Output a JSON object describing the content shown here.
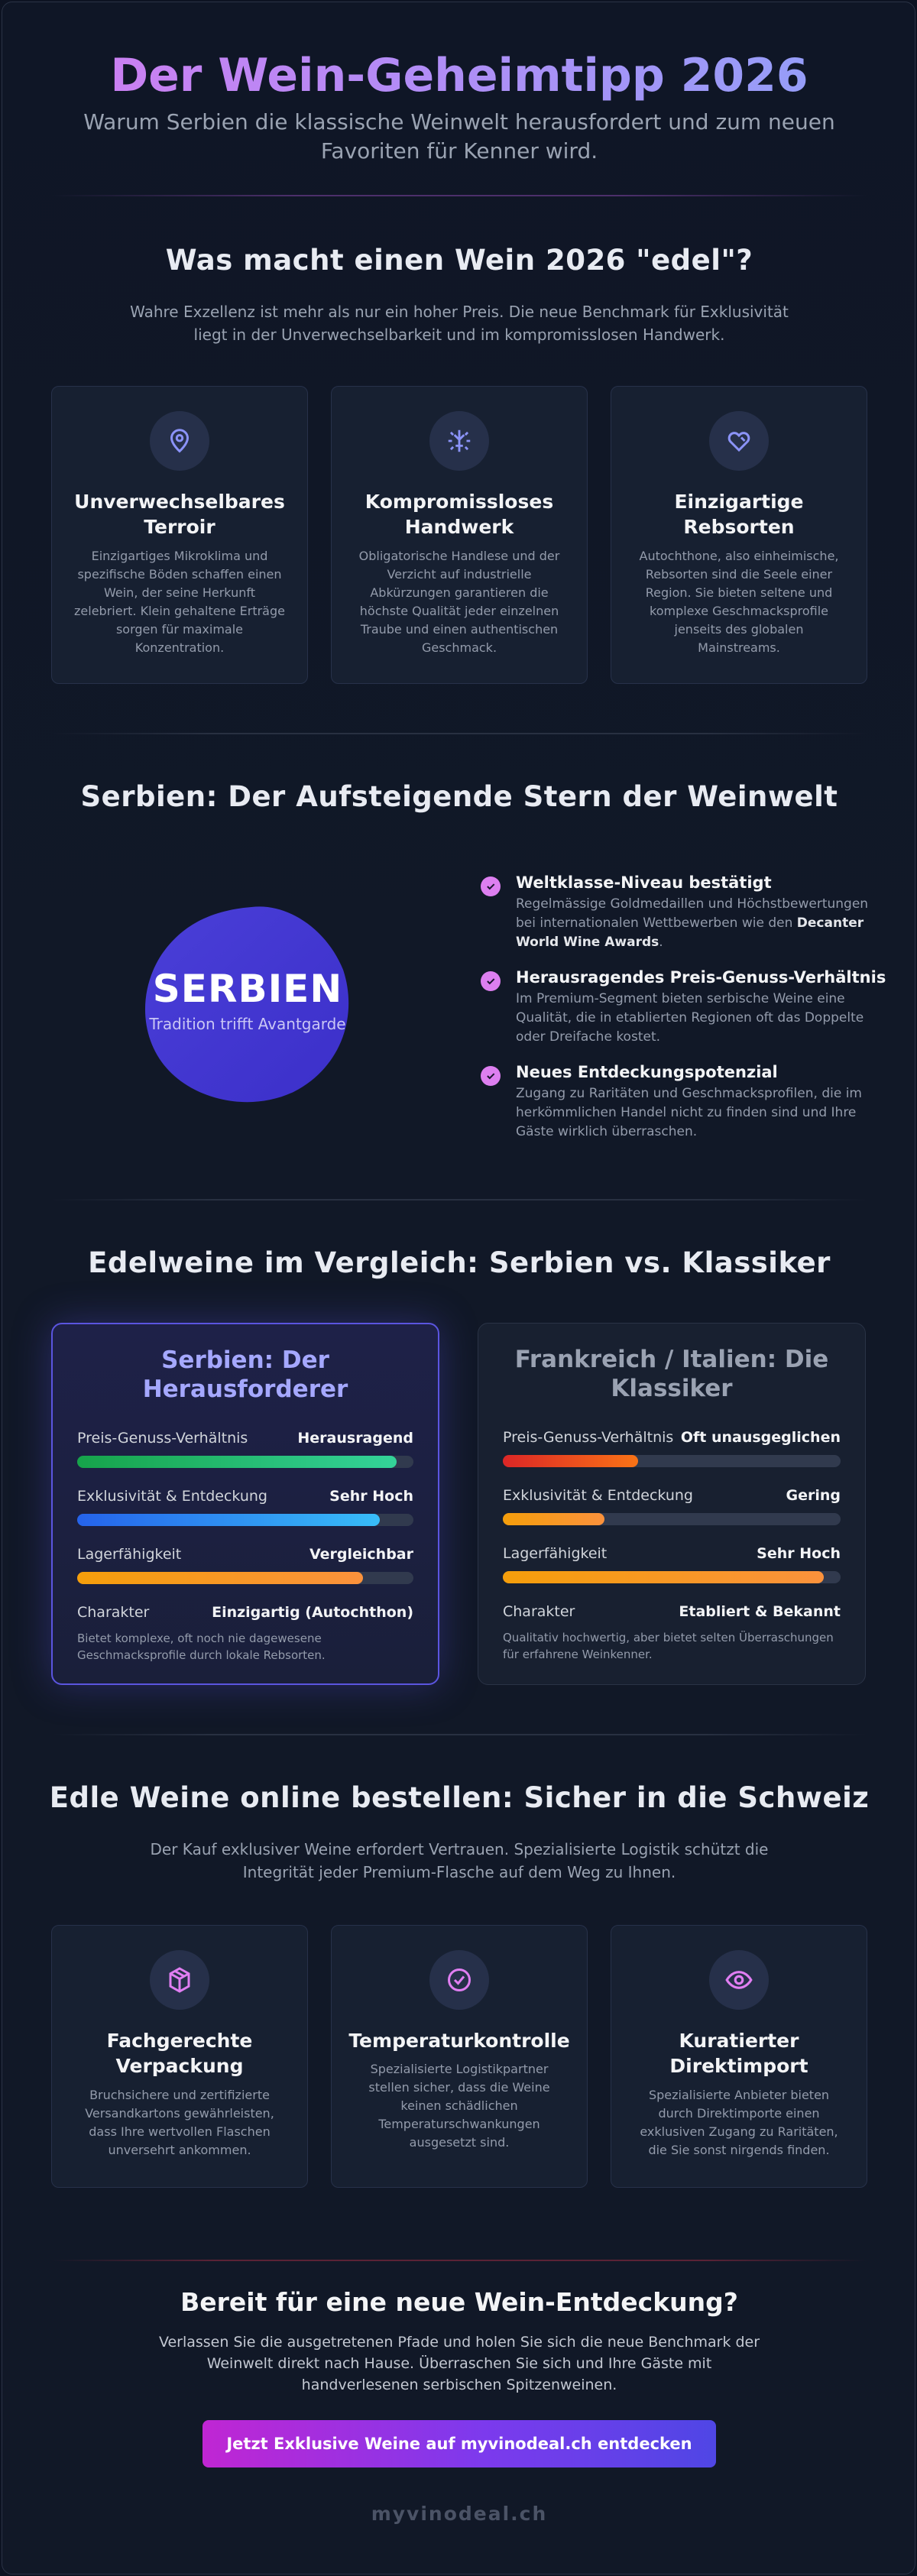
{
  "header": {
    "title": "Der Wein-Geheimtipp 2026",
    "subtitle": "Warum Serbien die klassische Weinwelt herausfordert und zum neuen Favoriten für Kenner wird."
  },
  "noble": {
    "title": "Was macht einen Wein 2026 \"edel\"?",
    "intro": "Wahre Exzellenz ist mehr als nur ein hoher Preis. Die neue Benchmark für Exklusivität liegt in der Unverwechselbarkeit und im kompromisslosen Handwerk.",
    "cards": [
      {
        "icon": "location-pin-icon",
        "title": "Unverwechselbares Terroir",
        "text": "Einzigartiges Mikroklima und spezifische Böden schaffen einen Wein, der seine Herkunft zelebriert. Klein gehaltene Erträge sorgen für maximale Konzentration."
      },
      {
        "icon": "grape-press-icon",
        "title": "Kompromissloses Handwerk",
        "text": "Obligatorische Handlese und der Verzicht auf industrielle Abkürzungen garantieren die höchste Qualität jeder einzelnen Traube und einen authentischen Geschmack."
      },
      {
        "icon": "heart-tag-icon",
        "title": "Einzigartige Rebsorten",
        "text": "Autochthone, also einheimische, Rebsorten sind die Seele einer Region. Sie bieten seltene und komplexe Geschmacksprofile jenseits des globalen Mainstreams."
      }
    ]
  },
  "serbia": {
    "title": "Serbien: Der Aufsteigende Stern der Weinwelt",
    "badge_title": "SERBIEN",
    "badge_sub": "Tradition trifft Avantgarde",
    "points": [
      {
        "title": "Weltklasse-Niveau bestätigt",
        "text": "Regelmässige Goldmedaillen und Höchstbewertungen bei internationalen Wettbewerben wie den",
        "highlight": "Decanter World Wine Awards",
        "suffix": "."
      },
      {
        "title": "Herausragendes Preis-Genuss-Verhältnis",
        "text": "Im Premium-Segment bieten serbische Weine eine Qualität, die in etablierten Regionen oft das Doppelte oder Dreifache kostet."
      },
      {
        "title": "Neues Entdeckungspotenzial",
        "text": "Zugang zu Raritäten und Geschmacksprofilen, die im herkömmlichen Handel nicht zu finden sind und Ihre Gäste wirklich überraschen."
      }
    ]
  },
  "comparison": {
    "title": "Edelweine im Vergleich: Serbien vs. Klassiker",
    "colors": {
      "green": "#22c55e",
      "blue": "#3b82f6",
      "orange": "#f59e0b",
      "red": "#ef4444"
    },
    "left": {
      "title": "Serbien: Der Herausforderer",
      "rows": [
        {
          "label": "Preis-Genuss-Verhältnis",
          "value": "Herausragend",
          "level": 0.95,
          "color": "green"
        },
        {
          "label": "Exklusivität & Entdeckung",
          "value": "Sehr Hoch",
          "level": 0.9,
          "color": "blue"
        },
        {
          "label": "Lagerfähigkeit",
          "value": "Vergleichbar",
          "level": 0.85,
          "color": "orange"
        }
      ],
      "char_label": "Charakter",
      "char_value": "Einzigartig (Autochthon)",
      "note": "Bietet komplexe, oft noch nie dagewesene Geschmacksprofile durch lokale Rebsorten."
    },
    "right": {
      "title": "Frankreich / Italien: Die Klassiker",
      "rows": [
        {
          "label": "Preis-Genuss-Verhältnis",
          "value": "Oft unausgeglichen",
          "level": 0.4,
          "color": "red"
        },
        {
          "label": "Exklusivität & Entdeckung",
          "value": "Gering",
          "level": 0.3,
          "color": "orange"
        },
        {
          "label": "Lagerfähigkeit",
          "value": "Sehr Hoch",
          "level": 0.95,
          "color": "orange"
        }
      ],
      "char_label": "Charakter",
      "char_value": "Etabliert & Bekannt",
      "note": "Qualitativ hochwertig, aber bietet selten Überraschungen für erfahrene Weinkenner."
    }
  },
  "order": {
    "title": "Edle Weine online bestellen: Sicher in die Schweiz",
    "intro": "Der Kauf exklusiver Weine erfordert Vertrauen. Spezialisierte Logistik schützt die Integrität jeder Premium-Flasche auf dem Weg zu Ihnen.",
    "cards": [
      {
        "icon": "package-icon",
        "title": "Fachgerechte Verpackung",
        "text": "Bruchsichere und zertifizierte Versandkartons gewährleisten, dass Ihre wertvollen Flaschen unversehrt ankommen."
      },
      {
        "icon": "check-circle-icon",
        "title": "Temperaturkontrolle",
        "text": "Spezialisierte Logistikpartner stellen sicher, dass die Weine keinen schädlichen Temperaturschwankungen ausgesetzt sind."
      },
      {
        "icon": "eye-icon",
        "title": "Kuratierter Direktimport",
        "text": "Spezialisierte Anbieter bieten durch Direktimporte einen exklusiven Zugang zu Raritäten, die Sie sonst nirgends finden."
      }
    ]
  },
  "cta": {
    "title": "Bereit für eine neue Wein-Entdeckung?",
    "text": "Verlassen Sie die ausgetretenen Pfade und holen Sie sich die neue Benchmark der Weinwelt direkt nach Hause. Überraschen Sie sich und Ihre Gäste mit handverlesenen serbischen Spitzenweinen.",
    "button": "Jetzt Exklusive Weine auf myvinodeal.ch entdecken"
  },
  "footer": {
    "brand": "myvinodeal.ch"
  }
}
